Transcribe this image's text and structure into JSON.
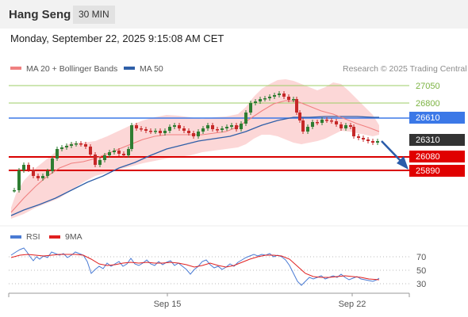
{
  "header": {
    "title": "Hang Seng",
    "interval": "30 MIN"
  },
  "datetime": "Monday, September 22, 2025 9:15:08 AM CET",
  "legend": {
    "ma20": {
      "label": "MA 20 + Bollinger Bands",
      "color": "#f08080"
    },
    "ma50": {
      "label": "MA 50",
      "color": "#2f5fa8"
    }
  },
  "credit": "Research © 2025 Trading Central",
  "levels": [
    {
      "value": "27050",
      "kind": "resistance-minor"
    },
    {
      "value": "26800",
      "kind": "resistance-minor"
    },
    {
      "value": "26610",
      "kind": "pivot"
    },
    {
      "value": "26310",
      "kind": "last-price"
    },
    {
      "value": "26080",
      "kind": "support"
    },
    {
      "value": "25890",
      "kind": "support"
    }
  ],
  "rsi_panel": {
    "legend_rsi": "RSI",
    "legend_ma": "9MA",
    "ticks": [
      "70",
      "50",
      "30"
    ]
  },
  "x_axis": {
    "labels": [
      "Sep 15",
      "Sep 22"
    ]
  },
  "colors": {
    "up": "#2e7d32",
    "down": "#c62828",
    "bands": "#fbd0d0",
    "rsi": "#4a7bd4",
    "rsi_ma": "#e02020",
    "pivot_line": "#3b78e7",
    "support_line": "#d90000",
    "resistance_line": "#9ccc65",
    "arrow": "#2a5caa"
  }
}
